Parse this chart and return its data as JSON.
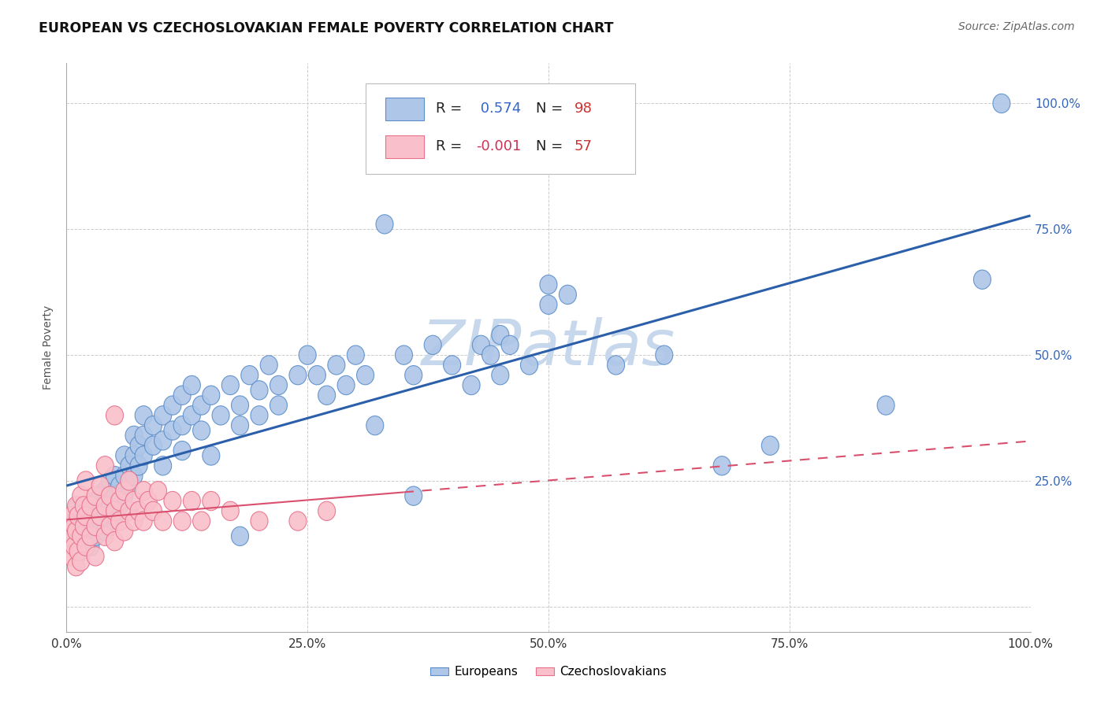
{
  "title": "EUROPEAN VS CZECHOSLOVAKIAN FEMALE POVERTY CORRELATION CHART",
  "source": "Source: ZipAtlas.com",
  "ylabel": "Female Poverty",
  "r_european": 0.574,
  "n_european": 98,
  "r_czechoslovakian": -0.001,
  "n_czechoslovakian": 57,
  "european_color": "#aec6e8",
  "european_edge_color": "#5b8ec9",
  "european_line_color": "#2b5faa",
  "czechoslovakian_color": "#f9c0cb",
  "czechoslovakian_edge_color": "#e8708a",
  "czechoslovakian_line_color": "#d94f6e",
  "watermark": "ZIPatlas",
  "watermark_color": "#c8d8ec",
  "background_color": "#ffffff",
  "grid_color": "#cccccc",
  "legend_text_color": "#3366bb",
  "european_scatter": [
    [
      0.005,
      0.16
    ],
    [
      0.008,
      0.14
    ],
    [
      0.01,
      0.18
    ],
    [
      0.01,
      0.12
    ],
    [
      0.012,
      0.2
    ],
    [
      0.015,
      0.15
    ],
    [
      0.015,
      0.11
    ],
    [
      0.02,
      0.17
    ],
    [
      0.02,
      0.13
    ],
    [
      0.02,
      0.19
    ],
    [
      0.025,
      0.16
    ],
    [
      0.025,
      0.12
    ],
    [
      0.03,
      0.18
    ],
    [
      0.03,
      0.14
    ],
    [
      0.03,
      0.21
    ],
    [
      0.035,
      0.17
    ],
    [
      0.035,
      0.22
    ],
    [
      0.04,
      0.19
    ],
    [
      0.04,
      0.15
    ],
    [
      0.04,
      0.23
    ],
    [
      0.045,
      0.2
    ],
    [
      0.045,
      0.25
    ],
    [
      0.05,
      0.22
    ],
    [
      0.05,
      0.18
    ],
    [
      0.05,
      0.26
    ],
    [
      0.055,
      0.24
    ],
    [
      0.055,
      0.2
    ],
    [
      0.06,
      0.26
    ],
    [
      0.06,
      0.22
    ],
    [
      0.06,
      0.3
    ],
    [
      0.065,
      0.28
    ],
    [
      0.065,
      0.24
    ],
    [
      0.07,
      0.3
    ],
    [
      0.07,
      0.26
    ],
    [
      0.07,
      0.34
    ],
    [
      0.075,
      0.32
    ],
    [
      0.075,
      0.28
    ],
    [
      0.08,
      0.34
    ],
    [
      0.08,
      0.3
    ],
    [
      0.08,
      0.38
    ],
    [
      0.09,
      0.36
    ],
    [
      0.09,
      0.32
    ],
    [
      0.1,
      0.38
    ],
    [
      0.1,
      0.33
    ],
    [
      0.1,
      0.28
    ],
    [
      0.11,
      0.4
    ],
    [
      0.11,
      0.35
    ],
    [
      0.12,
      0.36
    ],
    [
      0.12,
      0.42
    ],
    [
      0.12,
      0.31
    ],
    [
      0.13,
      0.38
    ],
    [
      0.13,
      0.44
    ],
    [
      0.14,
      0.4
    ],
    [
      0.14,
      0.35
    ],
    [
      0.15,
      0.3
    ],
    [
      0.15,
      0.42
    ],
    [
      0.16,
      0.38
    ],
    [
      0.17,
      0.44
    ],
    [
      0.18,
      0.4
    ],
    [
      0.18,
      0.36
    ],
    [
      0.19,
      0.46
    ],
    [
      0.2,
      0.43
    ],
    [
      0.2,
      0.38
    ],
    [
      0.21,
      0.48
    ],
    [
      0.22,
      0.44
    ],
    [
      0.22,
      0.4
    ],
    [
      0.24,
      0.46
    ],
    [
      0.25,
      0.5
    ],
    [
      0.26,
      0.46
    ],
    [
      0.27,
      0.42
    ],
    [
      0.28,
      0.48
    ],
    [
      0.29,
      0.44
    ],
    [
      0.3,
      0.5
    ],
    [
      0.31,
      0.46
    ],
    [
      0.32,
      0.36
    ],
    [
      0.33,
      0.76
    ],
    [
      0.35,
      0.5
    ],
    [
      0.36,
      0.46
    ],
    [
      0.38,
      0.52
    ],
    [
      0.4,
      0.48
    ],
    [
      0.42,
      0.44
    ],
    [
      0.43,
      0.52
    ],
    [
      0.44,
      0.5
    ],
    [
      0.45,
      0.54
    ],
    [
      0.45,
      0.46
    ],
    [
      0.46,
      0.52
    ],
    [
      0.48,
      0.48
    ],
    [
      0.5,
      0.64
    ],
    [
      0.5,
      0.6
    ],
    [
      0.52,
      0.62
    ],
    [
      0.57,
      0.48
    ],
    [
      0.62,
      0.5
    ],
    [
      0.68,
      0.28
    ],
    [
      0.73,
      0.32
    ],
    [
      0.85,
      0.4
    ],
    [
      0.95,
      0.65
    ],
    [
      0.97,
      1.0
    ],
    [
      0.36,
      0.22
    ],
    [
      0.18,
      0.14
    ]
  ],
  "czechoslovakian_scatter": [
    [
      0.005,
      0.14
    ],
    [
      0.005,
      0.1
    ],
    [
      0.005,
      0.18
    ],
    [
      0.008,
      0.12
    ],
    [
      0.008,
      0.16
    ],
    [
      0.01,
      0.2
    ],
    [
      0.01,
      0.08
    ],
    [
      0.01,
      0.15
    ],
    [
      0.012,
      0.18
    ],
    [
      0.012,
      0.11
    ],
    [
      0.015,
      0.22
    ],
    [
      0.015,
      0.14
    ],
    [
      0.015,
      0.09
    ],
    [
      0.018,
      0.16
    ],
    [
      0.018,
      0.2
    ],
    [
      0.02,
      0.25
    ],
    [
      0.02,
      0.12
    ],
    [
      0.02,
      0.18
    ],
    [
      0.025,
      0.14
    ],
    [
      0.025,
      0.2
    ],
    [
      0.03,
      0.16
    ],
    [
      0.03,
      0.22
    ],
    [
      0.03,
      0.1
    ],
    [
      0.035,
      0.18
    ],
    [
      0.035,
      0.24
    ],
    [
      0.04,
      0.2
    ],
    [
      0.04,
      0.14
    ],
    [
      0.04,
      0.28
    ],
    [
      0.045,
      0.22
    ],
    [
      0.045,
      0.16
    ],
    [
      0.05,
      0.38
    ],
    [
      0.05,
      0.19
    ],
    [
      0.05,
      0.13
    ],
    [
      0.055,
      0.21
    ],
    [
      0.055,
      0.17
    ],
    [
      0.06,
      0.23
    ],
    [
      0.06,
      0.15
    ],
    [
      0.065,
      0.19
    ],
    [
      0.065,
      0.25
    ],
    [
      0.07,
      0.17
    ],
    [
      0.07,
      0.21
    ],
    [
      0.075,
      0.19
    ],
    [
      0.08,
      0.23
    ],
    [
      0.08,
      0.17
    ],
    [
      0.085,
      0.21
    ],
    [
      0.09,
      0.19
    ],
    [
      0.095,
      0.23
    ],
    [
      0.1,
      0.17
    ],
    [
      0.11,
      0.21
    ],
    [
      0.12,
      0.17
    ],
    [
      0.13,
      0.21
    ],
    [
      0.14,
      0.17
    ],
    [
      0.15,
      0.21
    ],
    [
      0.17,
      0.19
    ],
    [
      0.2,
      0.17
    ],
    [
      0.24,
      0.17
    ],
    [
      0.27,
      0.19
    ]
  ],
  "xlim": [
    0.0,
    1.0
  ],
  "ylim": [
    -0.05,
    1.08
  ],
  "xticks": [
    0.0,
    0.25,
    0.5,
    0.75,
    1.0
  ],
  "xtick_labels": [
    "0.0%",
    "25.0%",
    "50.0%",
    "75.0%",
    "100.0%"
  ],
  "ytick_labels_right": [
    "100.0%",
    "75.0%",
    "50.0%",
    "25.0%",
    ""
  ],
  "ytick_positions": [
    1.0,
    0.75,
    0.5,
    0.25,
    0.0
  ]
}
